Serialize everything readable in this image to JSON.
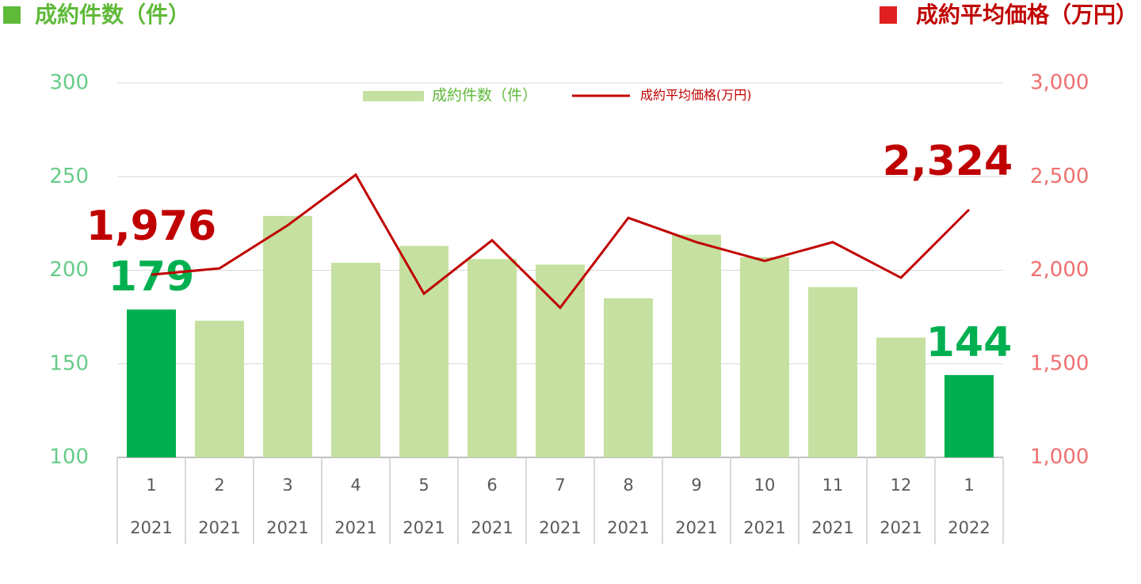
{
  "chart_data": {
    "type": "bar_line",
    "y_title": "成約件数（件）",
    "y2_title": "成約平均価格（万円）",
    "categories": [
      "1",
      "2",
      "3",
      "4",
      "5",
      "6",
      "7",
      "8",
      "9",
      "10",
      "11",
      "12",
      "1"
    ],
    "category_years": [
      "2021",
      "2021",
      "2021",
      "2021",
      "2021",
      "2021",
      "2021",
      "2021",
      "2021",
      "2021",
      "2021",
      "2021",
      "2022"
    ],
    "series": [
      {
        "name": "成約件数（件）",
        "type": "bar",
        "color": "#c5e0a0",
        "colors": [
          "#00b050",
          "#c5e0a0",
          "#c5e0a0",
          "#c5e0a0",
          "#c5e0a0",
          "#c5e0a0",
          "#c5e0a0",
          "#c5e0a0",
          "#c5e0a0",
          "#c5e0a0",
          "#c5e0a0",
          "#c5e0a0",
          "#00b050"
        ],
        "values": [
          179,
          173,
          229,
          204,
          213,
          206,
          203,
          185,
          219,
          207,
          191,
          164,
          144
        ],
        "value_labels": [
          "179",
          null,
          null,
          null,
          null,
          null,
          null,
          null,
          null,
          null,
          null,
          null,
          "144"
        ]
      },
      {
        "name": "成約平均価格(万円)",
        "type": "line",
        "axis": "y2",
        "color": "#c00000",
        "values": [
          1976,
          2010,
          2240,
          2510,
          1875,
          2160,
          1800,
          2280,
          2150,
          2050,
          2150,
          1960,
          2324
        ],
        "value_labels": [
          "1,976",
          null,
          null,
          null,
          null,
          null,
          null,
          null,
          null,
          null,
          null,
          null,
          "2,324"
        ]
      }
    ],
    "ylim": [
      100,
      300
    ],
    "yticks": [
      100,
      150,
      200,
      250,
      300
    ],
    "y2lim": [
      1000,
      3000
    ],
    "y2ticks": [
      {
        "value": 1000,
        "label": "1,000"
      },
      {
        "value": 1500,
        "label": "1,500"
      },
      {
        "value": 2000,
        "label": "2,000"
      },
      {
        "value": 2500,
        "label": "2,500"
      },
      {
        "value": 3000,
        "label": "3,000"
      }
    ],
    "grid": true
  }
}
